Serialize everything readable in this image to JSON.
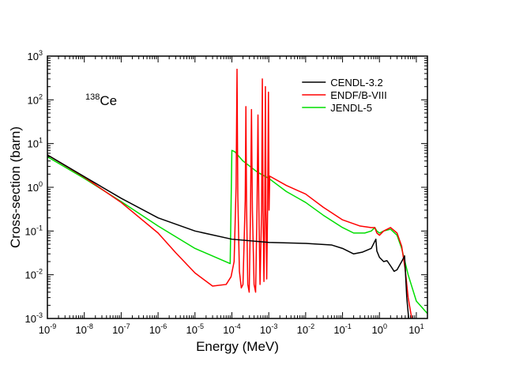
{
  "chart_data": {
    "type": "line",
    "xlabel": "Energy (MeV)",
    "ylabel": "Cross-section (barn)",
    "xscale": "log",
    "yscale": "log",
    "xlim": [
      1e-09,
      20
    ],
    "ylim": [
      0.001,
      1000
    ],
    "x_ticks": [
      {
        "base": "10",
        "exp": "-9",
        "value": 1e-09
      },
      {
        "base": "10",
        "exp": "-8",
        "value": 1e-08
      },
      {
        "base": "10",
        "exp": "-7",
        "value": 1e-07
      },
      {
        "base": "10",
        "exp": "-6",
        "value": 1e-06
      },
      {
        "base": "10",
        "exp": "-5",
        "value": 1e-05
      },
      {
        "base": "10",
        "exp": "-4",
        "value": 0.0001
      },
      {
        "base": "10",
        "exp": "-3",
        "value": 0.001
      },
      {
        "base": "10",
        "exp": "-2",
        "value": 0.01
      },
      {
        "base": "10",
        "exp": "-1",
        "value": 0.1
      },
      {
        "base": "10",
        "exp": "0",
        "value": 1
      },
      {
        "base": "10",
        "exp": "1",
        "value": 10
      }
    ],
    "y_ticks": [
      {
        "base": "10",
        "exp": "-3",
        "value": 0.001
      },
      {
        "base": "10",
        "exp": "-2",
        "value": 0.01
      },
      {
        "base": "10",
        "exp": "-1",
        "value": 0.1
      },
      {
        "base": "10",
        "exp": "0",
        "value": 1
      },
      {
        "base": "10",
        "exp": "1",
        "value": 10
      },
      {
        "base": "10",
        "exp": "2",
        "value": 100
      },
      {
        "base": "10",
        "exp": "3",
        "value": 1000
      }
    ],
    "annotation": {
      "sup": "138",
      "text": "Ce",
      "position": "top-left"
    },
    "legend_position": "top-right",
    "series": [
      {
        "name": "CENDL-3.2",
        "color": "#000000",
        "points": [
          [
            1e-09,
            5.5
          ],
          [
            1e-08,
            1.75
          ],
          [
            1e-07,
            0.56
          ],
          [
            1e-06,
            0.2
          ],
          [
            1e-05,
            0.1
          ],
          [
            0.0001,
            0.065
          ],
          [
            0.001,
            0.055
          ],
          [
            0.01,
            0.052
          ],
          [
            0.05,
            0.048
          ],
          [
            0.1,
            0.04
          ],
          [
            0.2,
            0.03
          ],
          [
            0.35,
            0.033
          ],
          [
            0.6,
            0.04
          ],
          [
            0.8,
            0.065
          ],
          [
            0.85,
            0.035
          ],
          [
            1.0,
            0.025
          ],
          [
            1.3,
            0.02
          ],
          [
            1.6,
            0.021
          ],
          [
            2.0,
            0.016
          ],
          [
            2.5,
            0.012
          ],
          [
            3.0,
            0.013
          ],
          [
            4.0,
            0.02
          ],
          [
            4.8,
            0.027
          ],
          [
            5.5,
            0.003
          ],
          [
            6.2,
            0.001
          ]
        ]
      },
      {
        "name": "ENDF/B-VIII",
        "color": "#ff0000",
        "points": [
          [
            1e-09,
            5.5
          ],
          [
            1e-08,
            1.7
          ],
          [
            1e-07,
            0.45
          ],
          [
            1e-06,
            0.09
          ],
          [
            3e-06,
            0.032
          ],
          [
            1e-05,
            0.011
          ],
          [
            3e-05,
            0.0055
          ],
          [
            7e-05,
            0.006
          ],
          [
            9.5e-05,
            0.009
          ],
          [
            0.000115,
            0.02
          ],
          [
            0.00013,
            1.0
          ],
          [
            0.000138,
            500
          ],
          [
            0.000145,
            0.6
          ],
          [
            0.00016,
            0.012
          ],
          [
            0.00018,
            0.005
          ],
          [
            0.0002,
            0.006
          ],
          [
            0.00023,
            0.5
          ],
          [
            0.00024,
            70
          ],
          [
            0.00025,
            0.4
          ],
          [
            0.00027,
            0.006
          ],
          [
            0.000295,
            0.004
          ],
          [
            0.00032,
            0.3
          ],
          [
            0.00034,
            60
          ],
          [
            0.00036,
            0.3
          ],
          [
            0.0004,
            0.006
          ],
          [
            0.00044,
            0.004
          ],
          [
            0.00048,
            0.3
          ],
          [
            0.00051,
            45
          ],
          [
            0.00054,
            0.3
          ],
          [
            0.00058,
            0.006
          ],
          [
            0.00064,
            0.3
          ],
          [
            0.00067,
            300
          ],
          [
            0.0007,
            0.3
          ],
          [
            0.00074,
            0.007
          ],
          [
            0.00078,
            0.3
          ],
          [
            0.00081,
            200
          ],
          [
            0.00084,
            0.3
          ],
          [
            0.00088,
            0.008
          ],
          [
            0.00093,
            0.3
          ],
          [
            0.00098,
            150
          ],
          [
            0.00102,
            0.3
          ],
          [
            0.00106,
            1.8
          ],
          [
            0.003,
            1.1
          ],
          [
            0.01,
            0.7
          ],
          [
            0.03,
            0.35
          ],
          [
            0.1,
            0.18
          ],
          [
            0.3,
            0.13
          ],
          [
            0.6,
            0.12
          ],
          [
            0.75,
            0.12
          ],
          [
            0.85,
            0.09
          ],
          [
            1.0,
            0.08
          ],
          [
            1.3,
            0.1
          ],
          [
            2.0,
            0.12
          ],
          [
            3.0,
            0.09
          ],
          [
            4.0,
            0.045
          ],
          [
            5.0,
            0.013
          ],
          [
            6.0,
            0.003
          ],
          [
            7.5,
            0.001
          ]
        ]
      },
      {
        "name": "JENDL-5",
        "color": "#00dd00",
        "points": [
          [
            1e-09,
            5.0
          ],
          [
            1e-08,
            1.6
          ],
          [
            1e-07,
            0.47
          ],
          [
            1e-06,
            0.13
          ],
          [
            1e-05,
            0.04
          ],
          [
            9e-05,
            0.018
          ],
          [
            0.0001,
            7.0
          ],
          [
            0.00012,
            6.5
          ],
          [
            0.0002,
            4.0
          ],
          [
            0.0005,
            2.2
          ],
          [
            0.001,
            1.6
          ],
          [
            0.003,
            0.8
          ],
          [
            0.01,
            0.45
          ],
          [
            0.03,
            0.23
          ],
          [
            0.1,
            0.12
          ],
          [
            0.2,
            0.09
          ],
          [
            0.4,
            0.09
          ],
          [
            0.6,
            0.1
          ],
          [
            0.75,
            0.12
          ],
          [
            0.85,
            0.1
          ],
          [
            1.0,
            0.09
          ],
          [
            1.3,
            0.1
          ],
          [
            2.0,
            0.11
          ],
          [
            3.0,
            0.08
          ],
          [
            4.0,
            0.04
          ],
          [
            6.0,
            0.01
          ],
          [
            10,
            0.0025
          ],
          [
            20,
            0.0013
          ]
        ]
      }
    ]
  }
}
